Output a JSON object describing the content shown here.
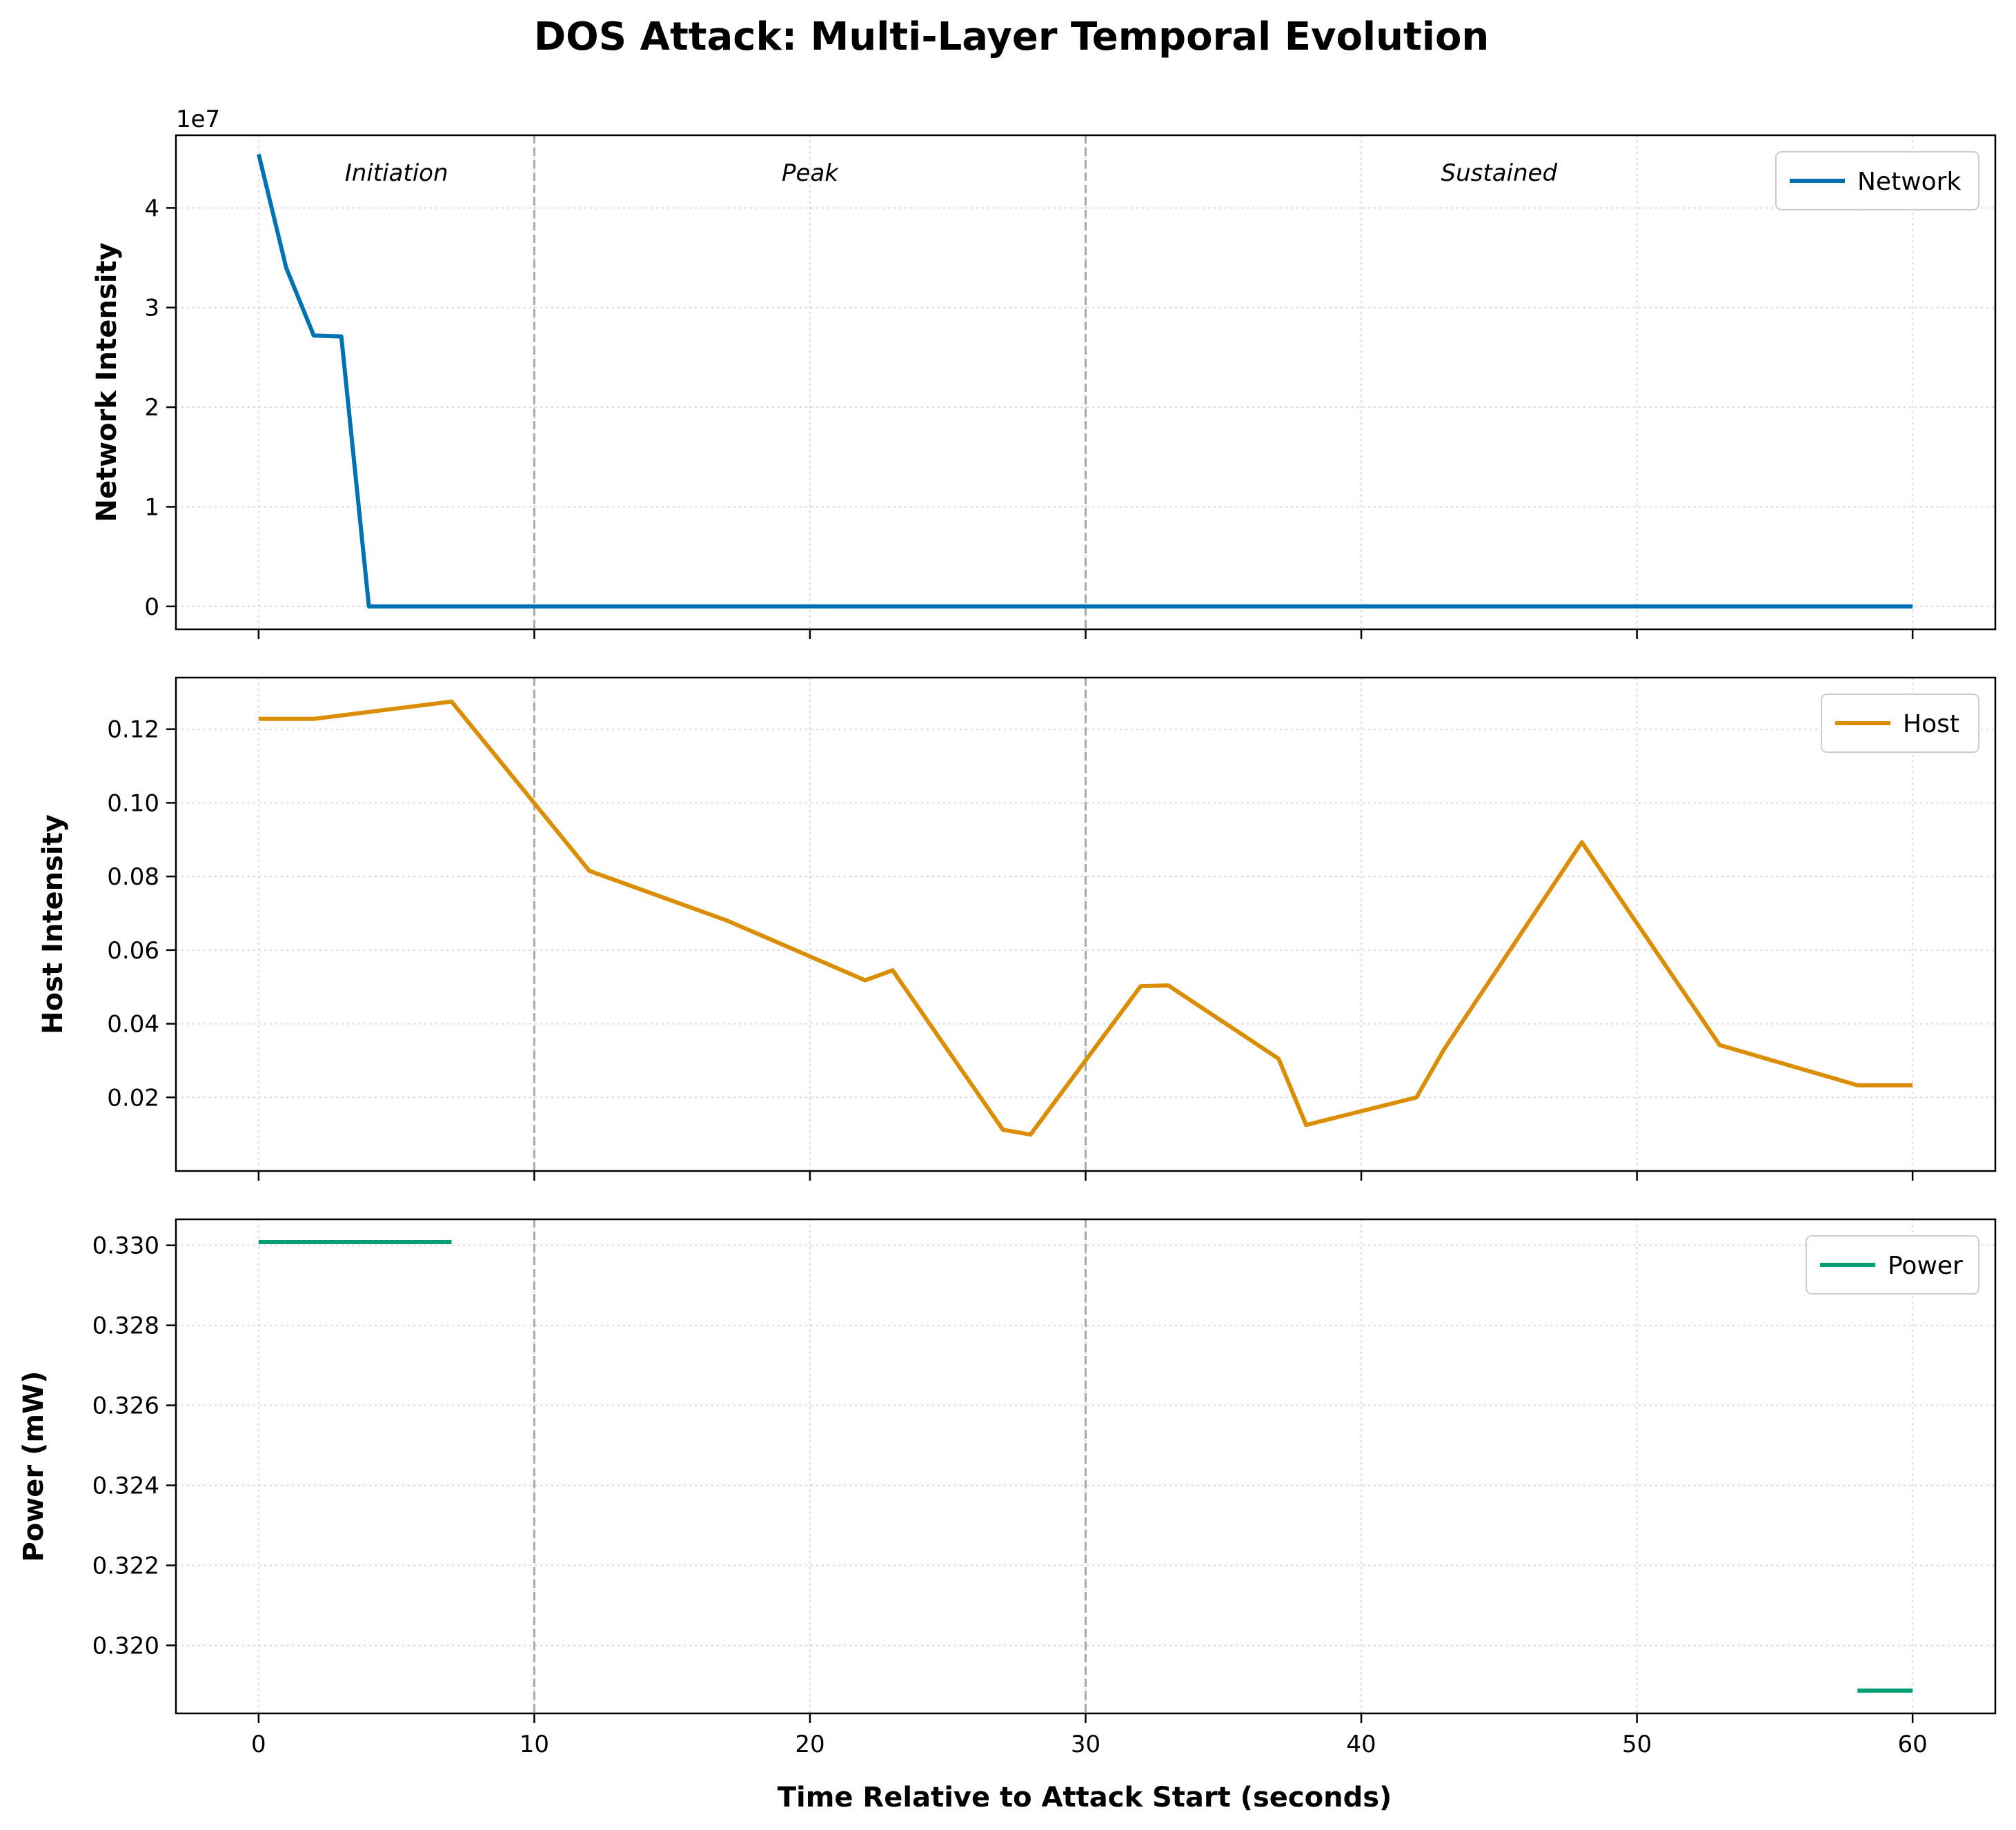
{
  "title": "DOS Attack: Multi-Layer Temporal Evolution",
  "xlabel": "Time Relative to Attack Start (seconds)",
  "xlim": [
    -3,
    63
  ],
  "xticks": [
    0,
    10,
    20,
    30,
    40,
    50,
    60
  ],
  "phase_boundaries": [
    10,
    30
  ],
  "phases": [
    {
      "label": "Initiation",
      "x": 5
    },
    {
      "label": "Peak",
      "x": 20
    },
    {
      "label": "Sustained",
      "x": 45
    }
  ],
  "colors": {
    "network": "#0072B2",
    "host": "#D98E04",
    "power": "#029E73"
  },
  "chart_data": [
    {
      "type": "line",
      "ylabel": "Network Intensity",
      "offset_label": "1e7",
      "ylim": [
        -2300000,
        47300000
      ],
      "yticks": [
        0,
        10000000,
        20000000,
        30000000,
        40000000
      ],
      "ytick_labels": [
        "0",
        "1",
        "2",
        "3",
        "4"
      ],
      "grid": true,
      "legend_position": "top-right",
      "series": [
        {
          "name": "Network",
          "x": [
            0,
            1,
            2,
            3,
            4,
            5,
            10,
            20,
            30,
            40,
            50,
            60
          ],
          "y": [
            45400000,
            34000000,
            27200000,
            27100000,
            0,
            0,
            0,
            0,
            0,
            0,
            0,
            0
          ]
        }
      ]
    },
    {
      "type": "line",
      "ylabel": "Host Intensity",
      "ylim": [
        0.0,
        0.134
      ],
      "yticks": [
        0.02,
        0.04,
        0.06,
        0.08,
        0.1,
        0.12
      ],
      "ytick_labels": [
        "0.02",
        "0.04",
        "0.06",
        "0.08",
        "0.10",
        "0.12"
      ],
      "grid": true,
      "legend_position": "top-right",
      "series": [
        {
          "name": "Host",
          "x": [
            0,
            2,
            7,
            12,
            17,
            22,
            23,
            27,
            28,
            32,
            33,
            37,
            38,
            42,
            43,
            48,
            53,
            58,
            60
          ],
          "y": [
            0.1228,
            0.1228,
            0.1275,
            0.0815,
            0.068,
            0.0518,
            0.0545,
            0.0112,
            0.0099,
            0.0502,
            0.0504,
            0.0305,
            0.0125,
            0.02,
            0.033,
            0.0893,
            0.0342,
            0.0233,
            0.0233
          ]
        }
      ]
    },
    {
      "type": "line",
      "ylabel": "Power (mW)",
      "ylim": [
        0.3183,
        0.33065
      ],
      "yticks": [
        0.32,
        0.322,
        0.324,
        0.326,
        0.328,
        0.33
      ],
      "ytick_labels": [
        "0.320",
        "0.322",
        "0.324",
        "0.326",
        "0.328",
        "0.330"
      ],
      "grid": true,
      "legend_position": "top-right",
      "series": [
        {
          "name": "Power",
          "segments": [
            {
              "x": [
                0,
                7
              ],
              "y": [
                0.33008,
                0.33008
              ]
            },
            {
              "x": [
                58,
                60
              ],
              "y": [
                0.31887,
                0.31887
              ]
            }
          ]
        }
      ]
    }
  ]
}
